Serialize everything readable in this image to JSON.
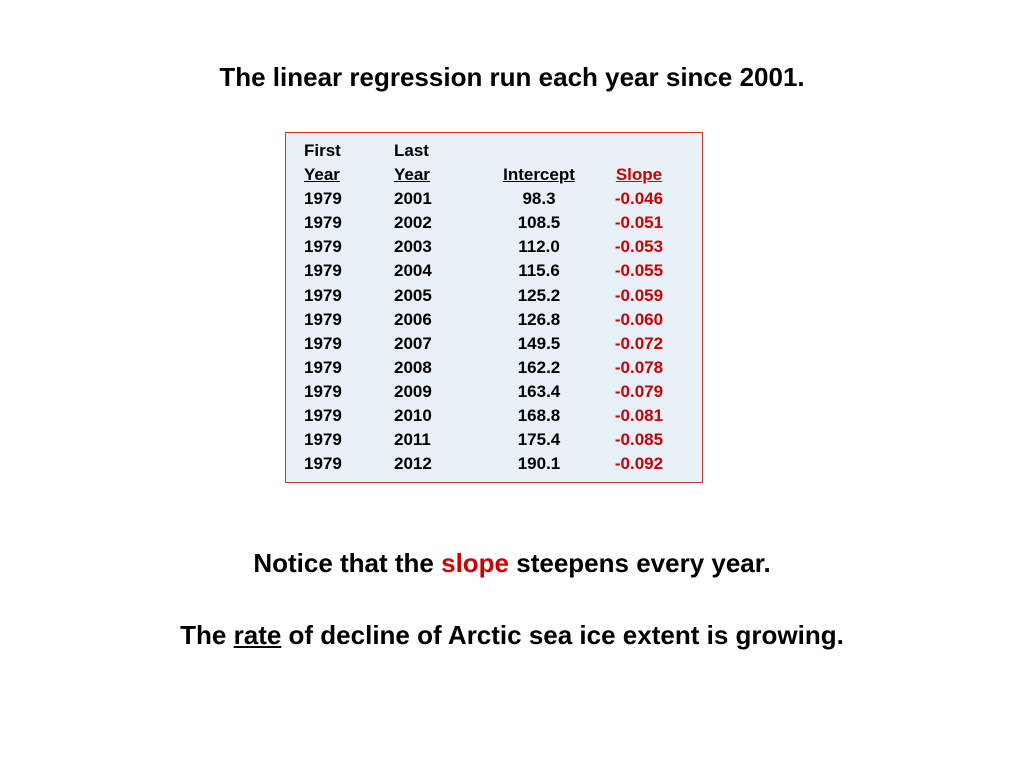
{
  "colors": {
    "background": "#ffffff",
    "text": "#000000",
    "accent_red": "#cc0000",
    "table_bg": "#e8f0f8",
    "table_border": "#cc3333"
  },
  "title": "The linear regression run each year since 2001.",
  "table": {
    "type": "table",
    "header_top": {
      "first": "First",
      "last": "Last",
      "intercept": "",
      "slope": ""
    },
    "header_bot": {
      "first": "Year",
      "last": "Year",
      "intercept": "Intercept",
      "slope": "Slope"
    },
    "rows": [
      {
        "first": "1979",
        "last": "2001",
        "intercept": "98.3",
        "slope": "-0.046"
      },
      {
        "first": "1979",
        "last": "2002",
        "intercept": "108.5",
        "slope": "-0.051"
      },
      {
        "first": "1979",
        "last": "2003",
        "intercept": "112.0",
        "slope": "-0.053"
      },
      {
        "first": "1979",
        "last": "2004",
        "intercept": "115.6",
        "slope": "-0.055"
      },
      {
        "first": "1979",
        "last": "2005",
        "intercept": "125.2",
        "slope": "-0.059"
      },
      {
        "first": "1979",
        "last": "2006",
        "intercept": "126.8",
        "slope": "-0.060"
      },
      {
        "first": "1979",
        "last": "2007",
        "intercept": "149.5",
        "slope": "-0.072"
      },
      {
        "first": "1979",
        "last": "2008",
        "intercept": "162.2",
        "slope": "-0.078"
      },
      {
        "first": "1979",
        "last": "2009",
        "intercept": "163.4",
        "slope": "-0.079"
      },
      {
        "first": "1979",
        "last": "2010",
        "intercept": "168.8",
        "slope": "-0.081"
      },
      {
        "first": "1979",
        "last": "2011",
        "intercept": "175.4",
        "slope": "-0.085"
      },
      {
        "first": "1979",
        "last": "2012",
        "intercept": "190.1",
        "slope": "-0.092"
      }
    ]
  },
  "caption1": {
    "pre": "Notice that the ",
    "word": "slope",
    "post": " steepens every year."
  },
  "caption2": {
    "pre": "The ",
    "word": "rate",
    "post": " of decline of Arctic sea ice extent is growing."
  }
}
